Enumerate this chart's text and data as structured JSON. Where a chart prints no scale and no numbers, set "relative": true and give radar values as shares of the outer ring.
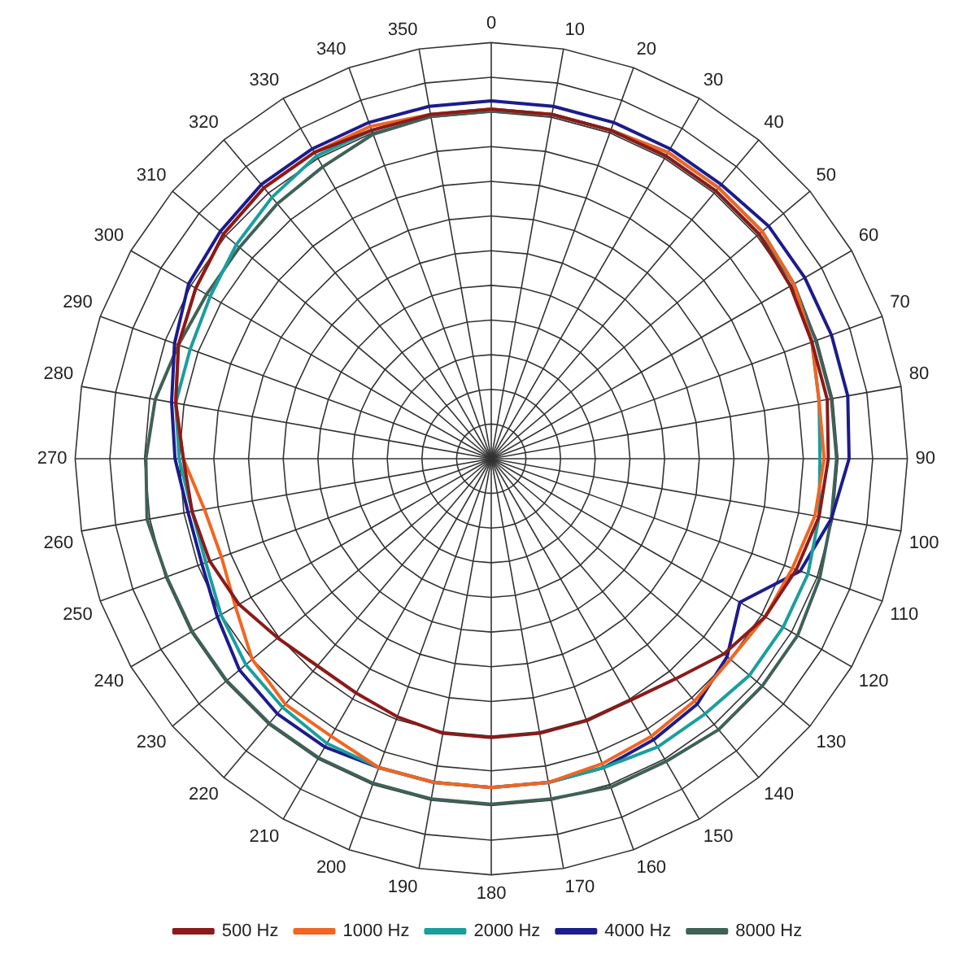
{
  "chart_data": {
    "type": "radar",
    "relative": true,
    "grid": true,
    "legend": "bottom",
    "marker": "none",
    "line_style": "solid",
    "categories": [
      "0",
      "10",
      "20",
      "30",
      "40",
      "50",
      "60",
      "70",
      "80",
      "90",
      "100",
      "110",
      "120",
      "130",
      "140",
      "150",
      "160",
      "170",
      "180",
      "190",
      "200",
      "210",
      "220",
      "230",
      "240",
      "250",
      "260",
      "270",
      "280",
      "290",
      "300",
      "310",
      "320",
      "330",
      "340",
      "350"
    ],
    "series": [
      {
        "name": "500 Hz",
        "color": "#8b1a1a",
        "values": [
          0.84,
          0.84,
          0.84,
          0.84,
          0.84,
          0.84,
          0.83,
          0.82,
          0.82,
          0.81,
          0.8,
          0.78,
          0.76,
          0.73,
          0.69,
          0.67,
          0.67,
          0.67,
          0.67,
          0.67,
          0.66,
          0.65,
          0.65,
          0.67,
          0.7,
          0.72,
          0.73,
          0.74,
          0.77,
          0.8,
          0.82,
          0.84,
          0.85,
          0.85,
          0.84,
          0.84
        ]
      },
      {
        "name": "1000 Hz",
        "color": "#f26522",
        "values": [
          0.84,
          0.84,
          0.84,
          0.85,
          0.85,
          0.85,
          0.84,
          0.82,
          0.8,
          0.8,
          0.79,
          0.77,
          0.76,
          0.75,
          0.76,
          0.77,
          0.78,
          0.79,
          0.79,
          0.79,
          0.79,
          0.77,
          0.77,
          0.75,
          0.71,
          0.69,
          0.7,
          0.74,
          0.77,
          0.8,
          0.82,
          0.84,
          0.85,
          0.85,
          0.85,
          0.84
        ]
      },
      {
        "name": "2000 Hz",
        "color": "#1a9e9e",
        "values": [
          0.84,
          0.84,
          0.84,
          0.85,
          0.85,
          0.85,
          0.84,
          0.82,
          0.8,
          0.79,
          0.8,
          0.81,
          0.81,
          0.81,
          0.8,
          0.8,
          0.79,
          0.79,
          0.79,
          0.79,
          0.79,
          0.79,
          0.78,
          0.77,
          0.75,
          0.73,
          0.73,
          0.75,
          0.77,
          0.77,
          0.78,
          0.8,
          0.82,
          0.84,
          0.84,
          0.84
        ]
      },
      {
        "name": "4000 Hz",
        "color": "#1c1c8c",
        "values": [
          0.86,
          0.86,
          0.86,
          0.86,
          0.86,
          0.87,
          0.87,
          0.87,
          0.87,
          0.86,
          0.83,
          0.79,
          0.69,
          0.74,
          0.77,
          0.78,
          0.79,
          0.79,
          0.79,
          0.79,
          0.79,
          0.8,
          0.8,
          0.79,
          0.76,
          0.74,
          0.74,
          0.76,
          0.78,
          0.81,
          0.84,
          0.85,
          0.86,
          0.86,
          0.86,
          0.86
        ]
      },
      {
        "name": "8000 Hz",
        "color": "#3f6157",
        "values": [
          0.835,
          0.84,
          0.84,
          0.84,
          0.84,
          0.84,
          0.84,
          0.83,
          0.83,
          0.83,
          0.83,
          0.84,
          0.85,
          0.85,
          0.85,
          0.84,
          0.84,
          0.83,
          0.83,
          0.83,
          0.83,
          0.83,
          0.83,
          0.83,
          0.83,
          0.83,
          0.84,
          0.83,
          0.82,
          0.8,
          0.79,
          0.79,
          0.8,
          0.81,
          0.83,
          0.835
        ]
      }
    ]
  }
}
